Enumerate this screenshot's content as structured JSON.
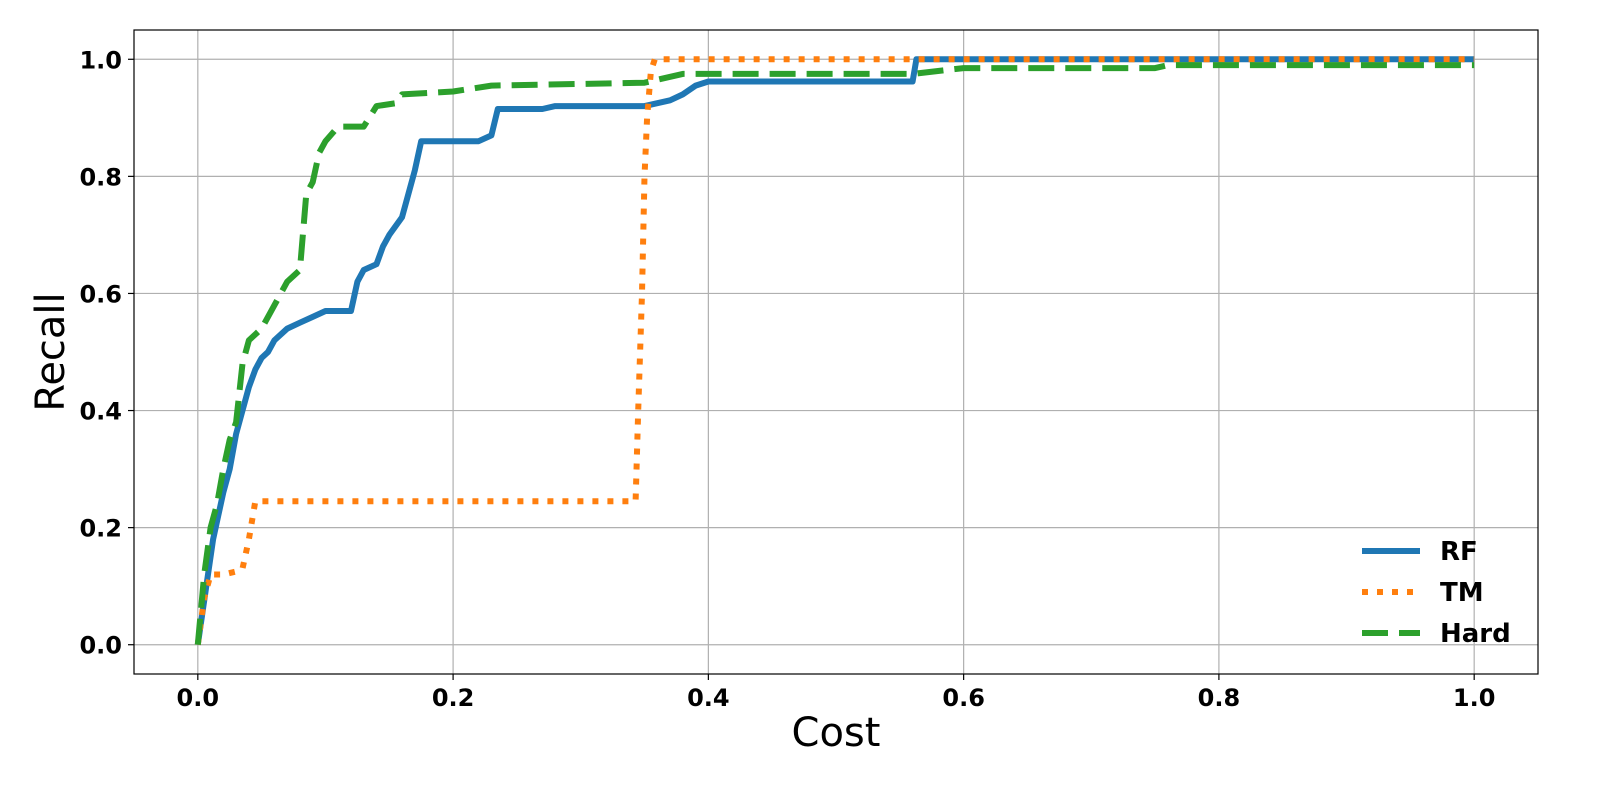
{
  "chart_data": {
    "type": "line",
    "title": "",
    "xlabel": "Cost",
    "ylabel": "Recall",
    "xlim": [
      -0.05,
      1.05
    ],
    "ylim": [
      -0.05,
      1.05
    ],
    "xticks": [
      0.0,
      0.2,
      0.4,
      0.6,
      0.8,
      1.0
    ],
    "yticks": [
      0.0,
      0.2,
      0.4,
      0.6,
      0.8,
      1.0
    ],
    "xtick_labels": [
      "0.0",
      "0.2",
      "0.4",
      "0.6",
      "0.8",
      "1.0"
    ],
    "ytick_labels": [
      "0.0",
      "0.2",
      "0.4",
      "0.6",
      "0.8",
      "1.0"
    ],
    "grid": true,
    "legend_position": "bottom-right",
    "series": [
      {
        "name": "RF",
        "color": "#1f77b4",
        "dash": "solid",
        "x": [
          0.0,
          0.004,
          0.008,
          0.012,
          0.016,
          0.02,
          0.025,
          0.03,
          0.035,
          0.04,
          0.045,
          0.05,
          0.055,
          0.06,
          0.07,
          0.08,
          0.09,
          0.1,
          0.12,
          0.125,
          0.13,
          0.14,
          0.145,
          0.15,
          0.16,
          0.165,
          0.17,
          0.175,
          0.22,
          0.23,
          0.235,
          0.27,
          0.28,
          0.35,
          0.37,
          0.38,
          0.39,
          0.4,
          0.56,
          0.563,
          1.0
        ],
        "y": [
          0.0,
          0.06,
          0.12,
          0.18,
          0.22,
          0.26,
          0.3,
          0.36,
          0.4,
          0.44,
          0.47,
          0.49,
          0.5,
          0.52,
          0.54,
          0.55,
          0.56,
          0.57,
          0.57,
          0.62,
          0.64,
          0.65,
          0.68,
          0.7,
          0.73,
          0.77,
          0.81,
          0.86,
          0.86,
          0.87,
          0.915,
          0.915,
          0.92,
          0.92,
          0.93,
          0.94,
          0.955,
          0.962,
          0.962,
          1.0,
          1.0
        ]
      },
      {
        "name": "TM",
        "color": "#ff7f0e",
        "dash": "dotted",
        "x": [
          0.0,
          0.005,
          0.01,
          0.02,
          0.03,
          0.035,
          0.04,
          0.045,
          0.1,
          0.2,
          0.3,
          0.343,
          0.345,
          0.348,
          0.35,
          0.352,
          0.355,
          0.358,
          0.38,
          0.5,
          1.0
        ],
        "y": [
          0.0,
          0.08,
          0.12,
          0.12,
          0.125,
          0.13,
          0.18,
          0.245,
          0.245,
          0.245,
          0.245,
          0.245,
          0.4,
          0.6,
          0.8,
          0.9,
          0.98,
          1.0,
          1.0,
          1.0,
          1.0
        ]
      },
      {
        "name": "Hard",
        "color": "#2ca02c",
        "dash": "dashed",
        "x": [
          0.0,
          0.005,
          0.01,
          0.015,
          0.02,
          0.025,
          0.03,
          0.035,
          0.04,
          0.05,
          0.06,
          0.07,
          0.08,
          0.085,
          0.09,
          0.095,
          0.1,
          0.11,
          0.13,
          0.14,
          0.155,
          0.16,
          0.2,
          0.23,
          0.35,
          0.38,
          0.56,
          0.6,
          0.75,
          0.76,
          1.0
        ],
        "y": [
          0.0,
          0.12,
          0.2,
          0.24,
          0.3,
          0.35,
          0.38,
          0.48,
          0.52,
          0.54,
          0.58,
          0.62,
          0.64,
          0.77,
          0.79,
          0.84,
          0.86,
          0.885,
          0.885,
          0.92,
          0.925,
          0.94,
          0.945,
          0.955,
          0.96,
          0.975,
          0.975,
          0.985,
          0.985,
          0.99,
          0.99
        ]
      }
    ]
  }
}
